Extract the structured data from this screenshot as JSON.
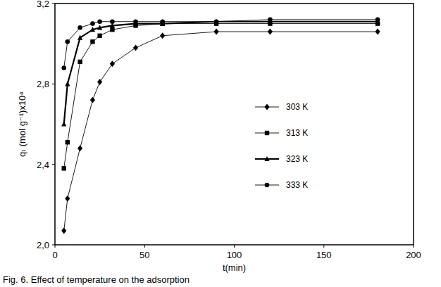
{
  "chart_data": {
    "type": "line",
    "caption": "Fig. 6.  Effect of temperature on the adsorption",
    "x_label": "t(min)",
    "y_label": "qₜ (mol g⁻¹)x10⁴",
    "x": [
      5,
      7,
      14,
      21,
      25,
      32,
      45,
      60,
      90,
      120,
      180
    ],
    "xlim": [
      0,
      200
    ],
    "xticks": [
      0,
      50,
      100,
      150,
      200
    ],
    "ylim": [
      2.0,
      3.2
    ],
    "yticks": [
      {
        "value": 2.0,
        "label": "2,0"
      },
      {
        "value": 2.4,
        "label": "2,4"
      },
      {
        "value": 2.8,
        "label": "2,8"
      },
      {
        "value": 3.2,
        "label": "3,2"
      }
    ],
    "grid": false,
    "legend": "right",
    "series": [
      {
        "name": "303 K",
        "color": "#000000",
        "marker": "diamond",
        "line_style": "solid",
        "values": [
          2.07,
          2.23,
          2.48,
          2.72,
          2.81,
          2.9,
          2.98,
          3.04,
          3.06,
          3.06,
          3.06
        ]
      },
      {
        "name": "313 K",
        "color": "#000000",
        "marker": "square",
        "line_style": "solid",
        "values": [
          2.38,
          2.51,
          2.91,
          3.01,
          3.04,
          3.07,
          3.09,
          3.1,
          3.1,
          3.1,
          3.1
        ]
      },
      {
        "name": "323 K",
        "color": "#000000",
        "marker": "triangle",
        "line_style": "thick",
        "values": [
          2.6,
          2.8,
          3.03,
          3.07,
          3.08,
          3.09,
          3.1,
          3.1,
          3.11,
          3.11,
          3.11
        ]
      },
      {
        "name": "333 K",
        "color": "#000000",
        "marker": "circle",
        "line_style": "solid",
        "values": [
          2.88,
          3.01,
          3.08,
          3.1,
          3.11,
          3.11,
          3.11,
          3.11,
          3.11,
          3.12,
          3.12
        ]
      }
    ]
  }
}
